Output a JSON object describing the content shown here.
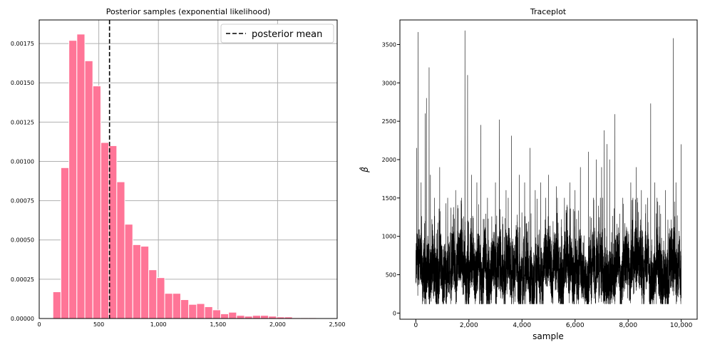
{
  "chart_data": [
    {
      "type": "bar",
      "title": "Posterior samples (exponential likelihood)",
      "xlabel": "",
      "ylabel": "",
      "xlim": [
        0,
        2500
      ],
      "ylim": [
        0,
        0.0019
      ],
      "grid": true,
      "legend_position": "top-right",
      "color": "#ff7597",
      "x_ticks": [
        "0",
        "500",
        "1,000",
        "1,500",
        "2,000",
        "2,500"
      ],
      "y_ticks": [
        "0.00000",
        "0.00025",
        "0.00050",
        "0.00075",
        "0.00100",
        "0.00125",
        "0.00150",
        "0.00175"
      ],
      "bins": [
        {
          "x0": 115,
          "x1": 182,
          "density": 0.00017
        },
        {
          "x0": 182,
          "x1": 249,
          "density": 0.00096
        },
        {
          "x0": 249,
          "x1": 316,
          "density": 0.00177
        },
        {
          "x0": 316,
          "x1": 383,
          "density": 0.00181
        },
        {
          "x0": 383,
          "x1": 450,
          "density": 0.00164
        },
        {
          "x0": 450,
          "x1": 517,
          "density": 0.00148
        },
        {
          "x0": 517,
          "x1": 584,
          "density": 0.00112
        },
        {
          "x0": 584,
          "x1": 651,
          "density": 0.0011
        },
        {
          "x0": 651,
          "x1": 718,
          "density": 0.00087
        },
        {
          "x0": 718,
          "x1": 785,
          "density": 0.0006
        },
        {
          "x0": 785,
          "x1": 852,
          "density": 0.00047
        },
        {
          "x0": 852,
          "x1": 919,
          "density": 0.00046
        },
        {
          "x0": 919,
          "x1": 986,
          "density": 0.00031
        },
        {
          "x0": 986,
          "x1": 1053,
          "density": 0.00026
        },
        {
          "x0": 1053,
          "x1": 1120,
          "density": 0.00016
        },
        {
          "x0": 1120,
          "x1": 1187,
          "density": 0.00016
        },
        {
          "x0": 1187,
          "x1": 1254,
          "density": 0.00012
        },
        {
          "x0": 1254,
          "x1": 1321,
          "density": 9e-05
        },
        {
          "x0": 1321,
          "x1": 1388,
          "density": 9.5e-05
        },
        {
          "x0": 1388,
          "x1": 1455,
          "density": 7.5e-05
        },
        {
          "x0": 1455,
          "x1": 1522,
          "density": 5.5e-05
        },
        {
          "x0": 1522,
          "x1": 1589,
          "density": 3e-05
        },
        {
          "x0": 1589,
          "x1": 1656,
          "density": 4e-05
        },
        {
          "x0": 1656,
          "x1": 1723,
          "density": 2e-05
        },
        {
          "x0": 1723,
          "x1": 1790,
          "density": 1.5e-05
        },
        {
          "x0": 1790,
          "x1": 1857,
          "density": 2e-05
        },
        {
          "x0": 1857,
          "x1": 1924,
          "density": 2e-05
        },
        {
          "x0": 1924,
          "x1": 1991,
          "density": 1.5e-05
        },
        {
          "x0": 1991,
          "x1": 2058,
          "density": 1e-05
        },
        {
          "x0": 2058,
          "x1": 2125,
          "density": 1e-05
        },
        {
          "x0": 2125,
          "x1": 2192,
          "density": 5e-06
        },
        {
          "x0": 2192,
          "x1": 2259,
          "density": 5e-06
        },
        {
          "x0": 2259,
          "x1": 2326,
          "density": 5e-06
        }
      ],
      "reference_line": {
        "name": "posterior mean",
        "x": 590,
        "style": "dashed",
        "color": "#000000"
      }
    },
    {
      "type": "line",
      "title": "Traceplot",
      "xlabel": "sample",
      "ylabel": "β̂",
      "xlim": [
        -600,
        10600
      ],
      "ylim": [
        -80,
        3820
      ],
      "grid": false,
      "color": "#000000",
      "n_samples": 10000,
      "x_ticks": [
        "0",
        "2,000",
        "4,000",
        "6,000",
        "8,000",
        "10,000"
      ],
      "y_ticks": [
        "0",
        "500",
        "1000",
        "1500",
        "2000",
        "2500",
        "3000",
        "3500"
      ],
      "typical_range": [
        150,
        1500
      ],
      "peaks": [
        {
          "x": 30,
          "y": 2150
        },
        {
          "x": 80,
          "y": 3660
        },
        {
          "x": 200,
          "y": 1700
        },
        {
          "x": 350,
          "y": 2600
        },
        {
          "x": 400,
          "y": 2800
        },
        {
          "x": 500,
          "y": 3200
        },
        {
          "x": 550,
          "y": 1800
        },
        {
          "x": 700,
          "y": 1500
        },
        {
          "x": 900,
          "y": 1900
        },
        {
          "x": 1200,
          "y": 1500
        },
        {
          "x": 1500,
          "y": 1600
        },
        {
          "x": 1850,
          "y": 3680
        },
        {
          "x": 1950,
          "y": 3100
        },
        {
          "x": 2100,
          "y": 1800
        },
        {
          "x": 2300,
          "y": 1700
        },
        {
          "x": 2450,
          "y": 2450
        },
        {
          "x": 2700,
          "y": 1500
        },
        {
          "x": 3000,
          "y": 1700
        },
        {
          "x": 3150,
          "y": 2520
        },
        {
          "x": 3400,
          "y": 1600
        },
        {
          "x": 3600,
          "y": 2310
        },
        {
          "x": 3900,
          "y": 1800
        },
        {
          "x": 4100,
          "y": 1700
        },
        {
          "x": 4300,
          "y": 1500
        },
        {
          "x": 4300,
          "y": 2150
        },
        {
          "x": 4500,
          "y": 1600
        },
        {
          "x": 4700,
          "y": 1700
        },
        {
          "x": 5000,
          "y": 1800
        },
        {
          "x": 5300,
          "y": 1650
        },
        {
          "x": 5600,
          "y": 1500
        },
        {
          "x": 5800,
          "y": 1700
        },
        {
          "x": 6000,
          "y": 1600
        },
        {
          "x": 6200,
          "y": 1900
        },
        {
          "x": 6500,
          "y": 2100
        },
        {
          "x": 6800,
          "y": 2000
        },
        {
          "x": 7000,
          "y": 1900
        },
        {
          "x": 7100,
          "y": 2380
        },
        {
          "x": 7200,
          "y": 2200
        },
        {
          "x": 7300,
          "y": 2000
        },
        {
          "x": 7500,
          "y": 2590
        },
        {
          "x": 7800,
          "y": 1500
        },
        {
          "x": 8100,
          "y": 1700
        },
        {
          "x": 8300,
          "y": 1900
        },
        {
          "x": 8500,
          "y": 1600
        },
        {
          "x": 8850,
          "y": 2730
        },
        {
          "x": 9000,
          "y": 1700
        },
        {
          "x": 9400,
          "y": 1600
        },
        {
          "x": 9700,
          "y": 3580
        },
        {
          "x": 9800,
          "y": 1700
        },
        {
          "x": 10000,
          "y": 2200
        }
      ]
    }
  ]
}
